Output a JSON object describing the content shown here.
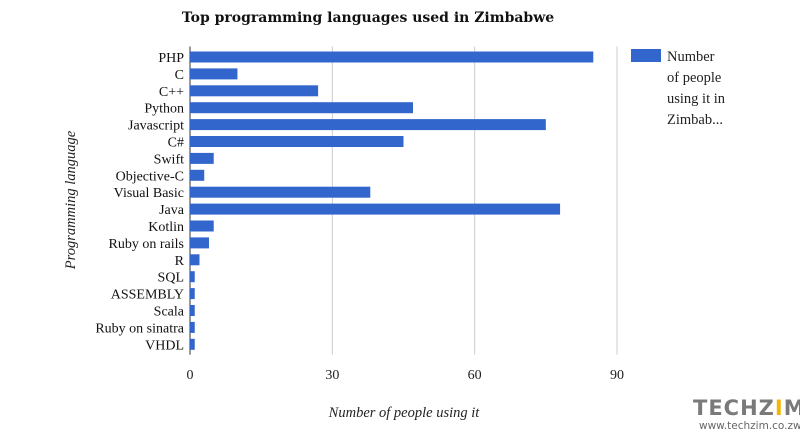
{
  "chart_data": {
    "type": "bar",
    "orientation": "horizontal",
    "title": "Top programming languages used in Zimbabwe",
    "xlabel": "Number of people using it",
    "ylabel": "Programming language",
    "categories": [
      "PHP",
      "C",
      "C++",
      "Python",
      "Javascript",
      "C#",
      "Swift",
      "Objective-C",
      "Visual Basic",
      "Java",
      "Kotlin",
      "Ruby on rails",
      "R",
      "SQL",
      "ASSEMBLY",
      "Scala",
      "Ruby on sinatra",
      "VHDL"
    ],
    "series": [
      {
        "name": "Number of people using it in Zimbab...",
        "values": [
          85,
          10,
          27,
          47,
          75,
          45,
          5,
          3,
          38,
          78,
          5,
          4,
          2,
          1,
          1,
          1,
          1,
          1
        ],
        "color": "#3366cc"
      }
    ],
    "xlim": [
      0,
      90
    ],
    "xticks": [
      0,
      30,
      60,
      90
    ],
    "grid": true,
    "legend": {
      "position": "right",
      "lines": [
        "Number",
        "of people",
        "using it in",
        "Zimbab..."
      ]
    }
  },
  "watermark": {
    "logo_left": "TECHZ",
    "logo_right": "M",
    "url": "www.techzim.co.zw",
    "accent_color": "#f2b705"
  }
}
